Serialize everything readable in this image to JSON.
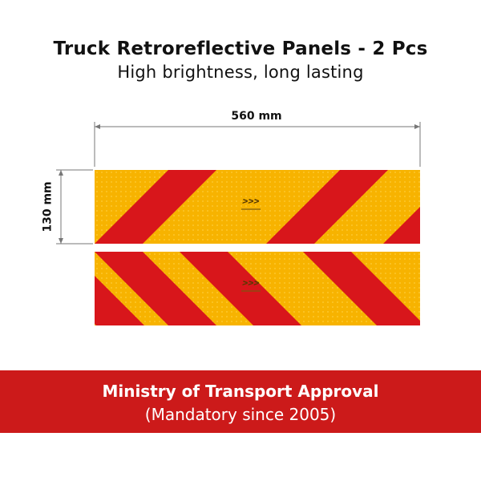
{
  "header": {
    "title": "Truck Retroreflective Panels - 2 Pcs",
    "subtitle": "High brightness, long lasting"
  },
  "dimensions": {
    "width_label": "560 mm",
    "height_label": "130 mm"
  },
  "banner": {
    "title": "Ministry of Transport Approval",
    "subtitle": "(Mandatory since 2005)"
  },
  "colors": {
    "panel_yellow": "#f7b300",
    "panel_red": "#d8161b",
    "banner_red": "#cc1a1a"
  }
}
